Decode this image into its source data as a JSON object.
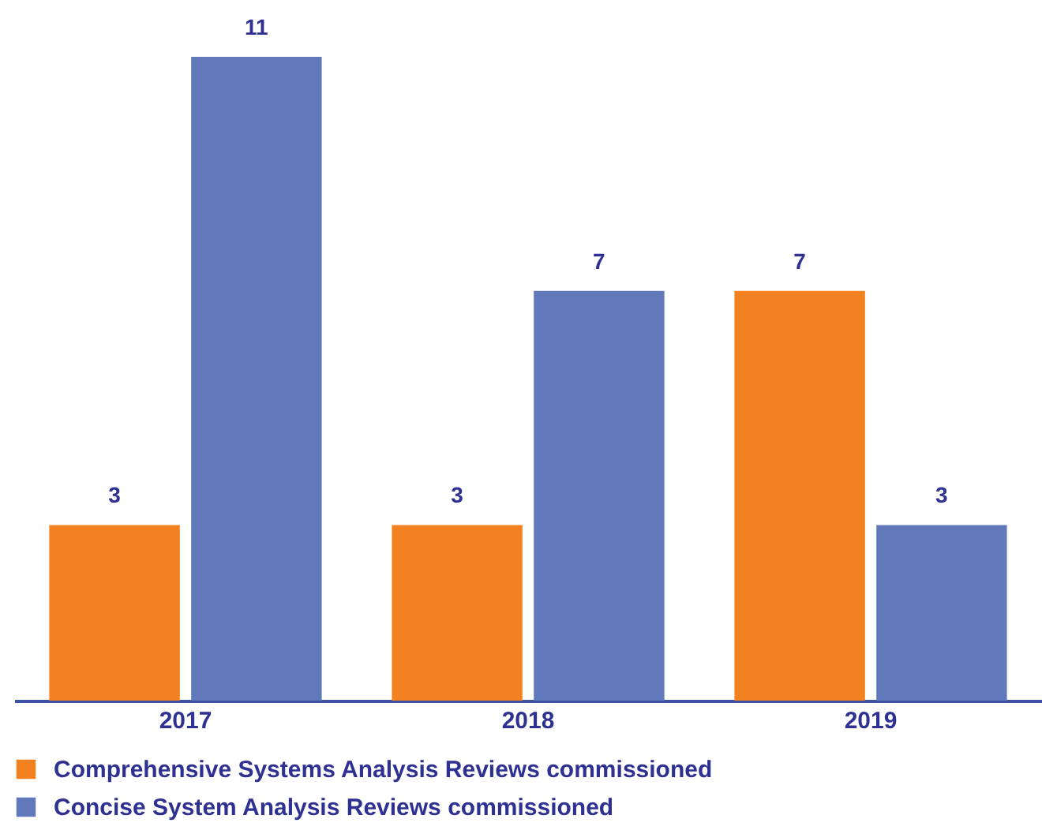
{
  "chart_data": {
    "type": "bar",
    "categories": [
      "2017",
      "2018",
      "2019"
    ],
    "series": [
      {
        "name": "Comprehensive Systems Analysis Reviews commissioned",
        "color": "#f48120",
        "values": [
          3,
          3,
          7
        ]
      },
      {
        "name": "Concise System Analysis Reviews commissioned",
        "color": "#6179ba",
        "values": [
          11,
          7,
          3
        ]
      }
    ],
    "data_labels": true,
    "legend": "bottom",
    "tick_labels": "x"
  }
}
